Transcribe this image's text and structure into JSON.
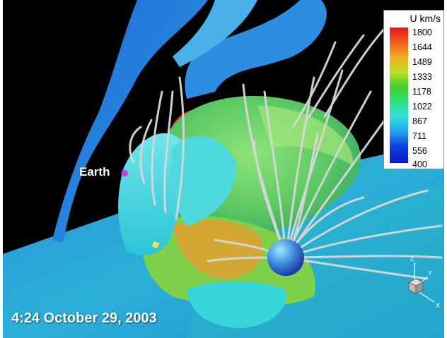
{
  "timestamp": "4:24 October 29, 2003",
  "earth_label": "Earth",
  "legend": {
    "title": "U km/s",
    "ticks": [
      "1800",
      "1644",
      "1489",
      "1333",
      "1178",
      "1022",
      "867",
      "711",
      "556",
      "400"
    ]
  },
  "axes": {
    "x": "X",
    "y": "Y",
    "z": "Z"
  }
}
